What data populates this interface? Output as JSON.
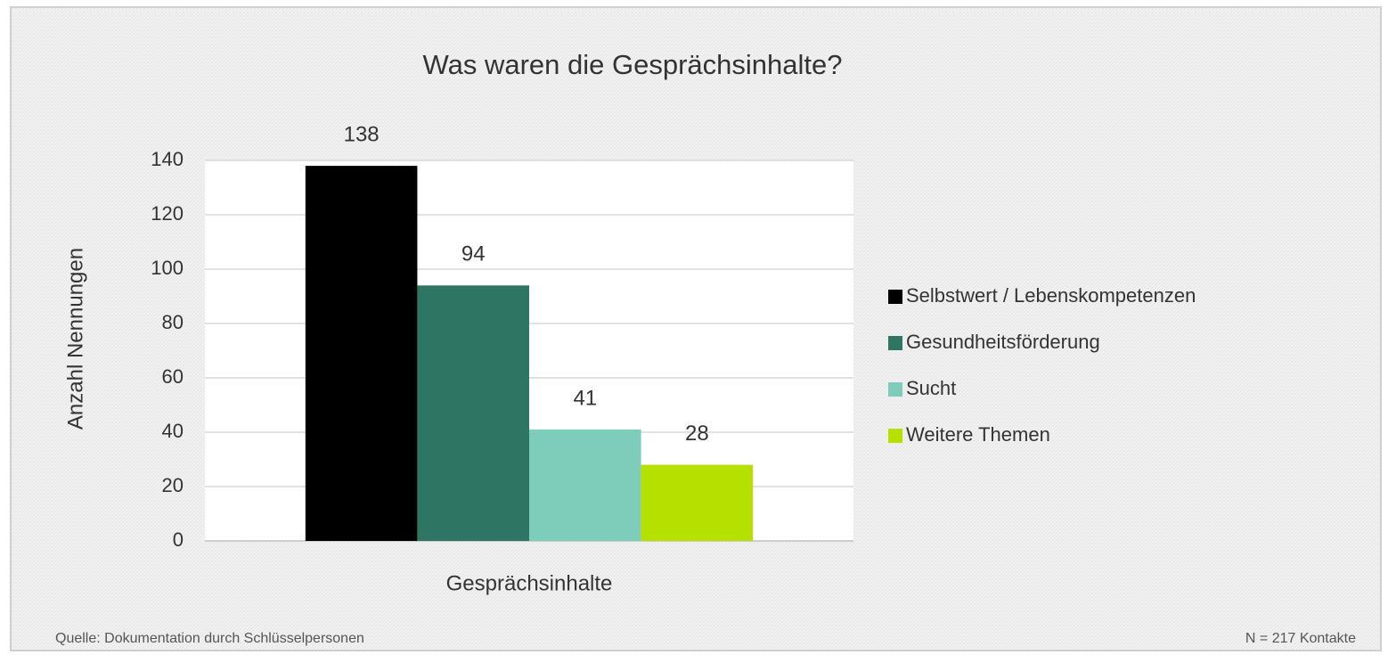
{
  "chart_data": {
    "type": "bar",
    "title": "Was waren die Gesprächsinhalte?",
    "y_label": "Anzahl Nennungen",
    "x_label": "Gesprächsinhalte",
    "categories": [
      "Gesprächsinhalte"
    ],
    "series": [
      {
        "name": "Selbstwert / Lebenskompetenzen",
        "color": "#000000",
        "values": [
          138
        ]
      },
      {
        "name": "Gesundheitsförderung",
        "color": "#2e7563",
        "values": [
          94
        ]
      },
      {
        "name": "Sucht",
        "color": "#7ecdbb",
        "values": [
          41
        ]
      },
      {
        "name": "Weitere Themen",
        "color": "#b5e000",
        "values": [
          28
        ]
      }
    ],
    "ylim": [
      0,
      140
    ],
    "yticks": [
      0,
      20,
      40,
      60,
      80,
      100,
      120,
      140
    ],
    "grid": true,
    "legend": "right",
    "source": "Quelle: Dokumentation durch Schlüsselpersonen",
    "note": "N = 217 Kontakte"
  }
}
